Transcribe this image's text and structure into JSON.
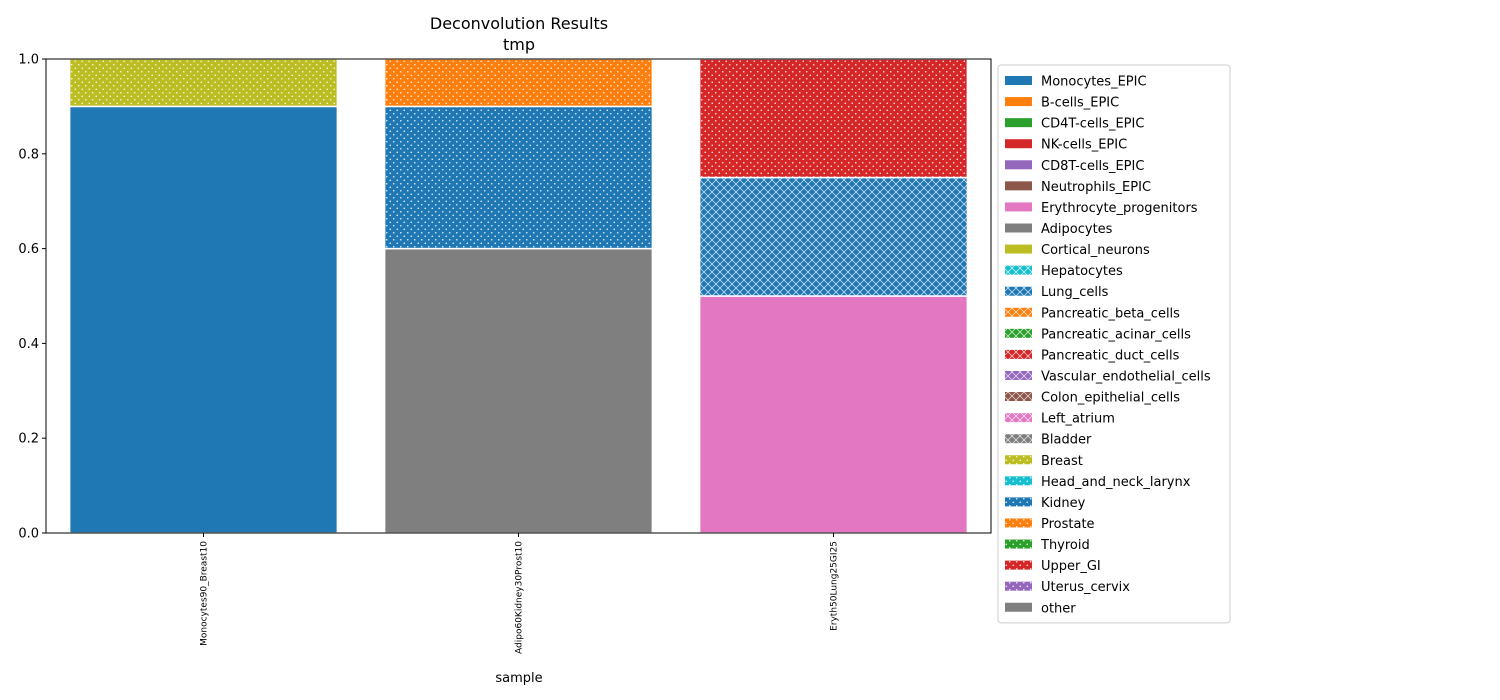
{
  "chart_data": {
    "type": "bar",
    "stacked": true,
    "title": "Deconvolution Results",
    "subtitle": "tmp",
    "xlabel": "sample",
    "ylabel": "",
    "ylim": [
      0,
      1.0
    ],
    "yticks": [
      "0.0",
      "0.2",
      "0.4",
      "0.6",
      "0.8",
      "1.0"
    ],
    "ytick_values": [
      0,
      0.2,
      0.4,
      0.6,
      0.8,
      1.0
    ],
    "legend_position": "outside-right",
    "grid": false,
    "categories": [
      "Monocytes90_Breast10",
      "Adipo60Kidney30Prost10",
      "Eryth50Lung25GI25"
    ],
    "series": [
      {
        "name": "Monocytes_EPIC",
        "color": "#1f77b4",
        "pattern": "none",
        "values": [
          0.9,
          0,
          0
        ]
      },
      {
        "name": "B-cells_EPIC",
        "color": "#ff7f0e",
        "pattern": "none",
        "values": [
          0,
          0,
          0
        ]
      },
      {
        "name": "CD4T-cells_EPIC",
        "color": "#2ca02c",
        "pattern": "none",
        "values": [
          0,
          0,
          0
        ]
      },
      {
        "name": "NK-cells_EPIC",
        "color": "#d62728",
        "pattern": "none",
        "values": [
          0,
          0,
          0
        ]
      },
      {
        "name": "CD8T-cells_EPIC",
        "color": "#9467bd",
        "pattern": "none",
        "values": [
          0,
          0,
          0
        ]
      },
      {
        "name": "Neutrophils_EPIC",
        "color": "#8c564b",
        "pattern": "none",
        "values": [
          0,
          0,
          0
        ]
      },
      {
        "name": "Erythrocyte_progenitors",
        "color": "#e377c2",
        "pattern": "none",
        "values": [
          0,
          0,
          0.5
        ]
      },
      {
        "name": "Adipocytes",
        "color": "#7f7f7f",
        "pattern": "none",
        "values": [
          0,
          0.6,
          0
        ]
      },
      {
        "name": "Cortical_neurons",
        "color": "#bcbd22",
        "pattern": "none",
        "values": [
          0,
          0,
          0
        ]
      },
      {
        "name": "Hepatocytes",
        "color": "#17becf",
        "pattern": "cross",
        "values": [
          0,
          0,
          0
        ]
      },
      {
        "name": "Lung_cells",
        "color": "#1f77b4",
        "pattern": "cross",
        "values": [
          0,
          0,
          0.25
        ]
      },
      {
        "name": "Pancreatic_beta_cells",
        "color": "#ff7f0e",
        "pattern": "cross",
        "values": [
          0,
          0,
          0
        ]
      },
      {
        "name": "Pancreatic_acinar_cells",
        "color": "#2ca02c",
        "pattern": "cross",
        "values": [
          0,
          0,
          0
        ]
      },
      {
        "name": "Pancreatic_duct_cells",
        "color": "#d62728",
        "pattern": "cross",
        "values": [
          0,
          0,
          0
        ]
      },
      {
        "name": "Vascular_endothelial_cells",
        "color": "#9467bd",
        "pattern": "cross",
        "values": [
          0,
          0,
          0
        ]
      },
      {
        "name": "Colon_epithelial_cells",
        "color": "#8c564b",
        "pattern": "cross",
        "values": [
          0,
          0,
          0
        ]
      },
      {
        "name": "Left_atrium",
        "color": "#e377c2",
        "pattern": "cross",
        "values": [
          0,
          0,
          0
        ]
      },
      {
        "name": "Bladder",
        "color": "#7f7f7f",
        "pattern": "cross",
        "values": [
          0,
          0,
          0
        ]
      },
      {
        "name": "Breast",
        "color": "#bcbd22",
        "pattern": "dots",
        "values": [
          0.1,
          0,
          0
        ]
      },
      {
        "name": "Head_and_neck_larynx",
        "color": "#17becf",
        "pattern": "dots",
        "values": [
          0,
          0,
          0
        ]
      },
      {
        "name": "Kidney",
        "color": "#1f77b4",
        "pattern": "dots",
        "values": [
          0,
          0.3,
          0
        ]
      },
      {
        "name": "Prostate",
        "color": "#ff7f0e",
        "pattern": "dots",
        "values": [
          0,
          0.1,
          0
        ]
      },
      {
        "name": "Thyroid",
        "color": "#2ca02c",
        "pattern": "dots",
        "values": [
          0,
          0,
          0
        ]
      },
      {
        "name": "Upper_GI",
        "color": "#d62728",
        "pattern": "dots",
        "values": [
          0,
          0,
          0.25
        ]
      },
      {
        "name": "Uterus_cervix",
        "color": "#9467bd",
        "pattern": "dots",
        "values": [
          0,
          0,
          0
        ]
      },
      {
        "name": "other",
        "color": "#7f7f7f",
        "pattern": "none",
        "values": [
          0,
          0,
          0
        ]
      }
    ]
  }
}
